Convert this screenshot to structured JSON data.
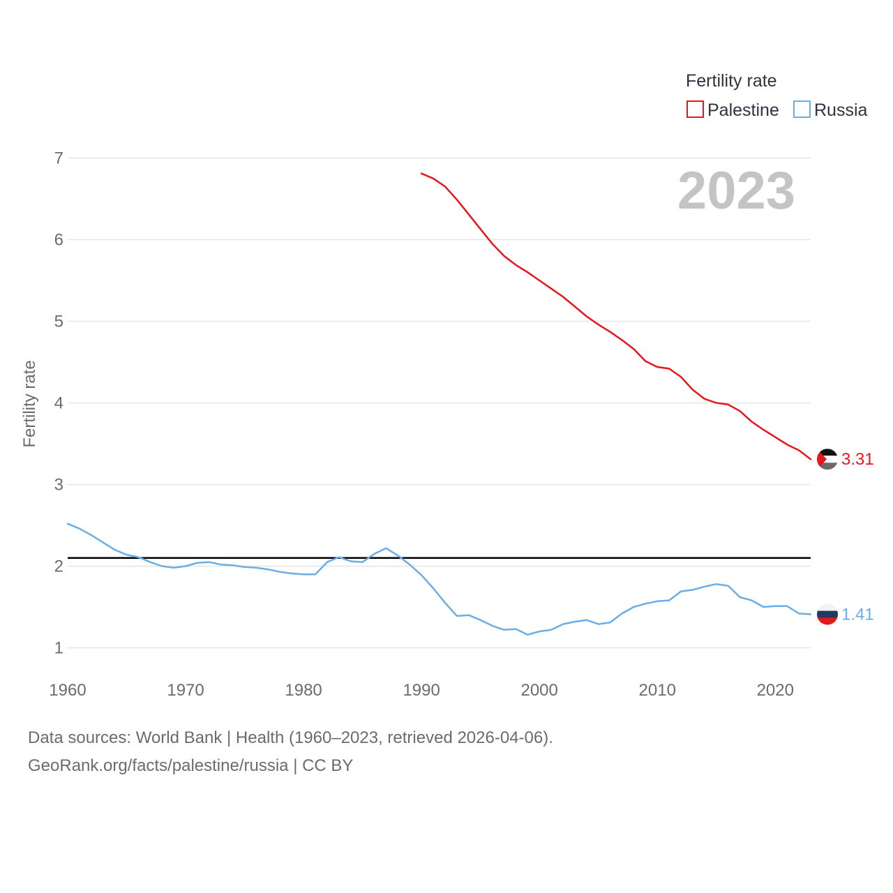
{
  "chart_data": {
    "type": "line",
    "ylabel": "Fertility rate",
    "xlim": [
      1960,
      2023
    ],
    "ylim": [
      0.85,
      7.05
    ],
    "x_ticks": [
      1960,
      1970,
      1980,
      1990,
      2000,
      2010,
      2020
    ],
    "x_tick_labels": [
      "1960",
      "1970",
      "1980",
      "1990",
      "2000",
      "2010",
      "2020"
    ],
    "y_ticks": [
      1,
      2,
      3,
      4,
      5,
      6,
      7
    ],
    "y_tick_labels": [
      "1",
      "2",
      "3",
      "4",
      "5",
      "6",
      "7"
    ],
    "grid": true,
    "legend": {
      "title": "Fertility rate",
      "position": "top-right",
      "entries": [
        {
          "name": "Palestine",
          "color": "#e8151b"
        },
        {
          "name": "Russia",
          "color": "#6aaee8"
        }
      ]
    },
    "year_label": "2023",
    "reference_line": {
      "y": 2.1,
      "color": "#000000"
    },
    "series": [
      {
        "name": "Palestine",
        "color": "#e8151b",
        "flag_icon": "palestine-flag-icon",
        "end_label": "3.31",
        "x": [
          1990,
          1991,
          1992,
          1993,
          1994,
          1995,
          1996,
          1997,
          1998,
          1999,
          2000,
          2001,
          2002,
          2003,
          2004,
          2005,
          2006,
          2007,
          2008,
          2009,
          2010,
          2011,
          2012,
          2013,
          2014,
          2015,
          2016,
          2017,
          2018,
          2019,
          2020,
          2021,
          2022,
          2023
        ],
        "values": [
          6.81,
          6.75,
          6.65,
          6.49,
          6.31,
          6.13,
          5.95,
          5.8,
          5.69,
          5.6,
          5.5,
          5.4,
          5.3,
          5.18,
          5.06,
          4.96,
          4.87,
          4.77,
          4.66,
          4.51,
          4.44,
          4.42,
          4.32,
          4.16,
          4.05,
          4.0,
          3.98,
          3.9,
          3.77,
          3.67,
          3.58,
          3.49,
          3.42,
          3.31
        ]
      },
      {
        "name": "Russia",
        "color": "#6aaee8",
        "flag_icon": "russia-flag-icon",
        "end_label": "1.41",
        "x": [
          1960,
          1961,
          1962,
          1963,
          1964,
          1965,
          1966,
          1967,
          1968,
          1969,
          1970,
          1971,
          1972,
          1973,
          1974,
          1975,
          1976,
          1977,
          1978,
          1979,
          1980,
          1981,
          1982,
          1983,
          1984,
          1985,
          1986,
          1987,
          1988,
          1989,
          1990,
          1991,
          1992,
          1993,
          1994,
          1995,
          1996,
          1997,
          1998,
          1999,
          2000,
          2001,
          2002,
          2003,
          2004,
          2005,
          2006,
          2007,
          2008,
          2009,
          2010,
          2011,
          2012,
          2013,
          2014,
          2015,
          2016,
          2017,
          2018,
          2019,
          2020,
          2021,
          2022,
          2023
        ],
        "values": [
          2.52,
          2.46,
          2.38,
          2.29,
          2.2,
          2.14,
          2.11,
          2.05,
          2.0,
          1.98,
          2.0,
          2.04,
          2.05,
          2.02,
          2.01,
          1.99,
          1.98,
          1.96,
          1.93,
          1.91,
          1.9,
          1.9,
          2.05,
          2.11,
          2.06,
          2.05,
          2.15,
          2.22,
          2.13,
          2.02,
          1.89,
          1.73,
          1.55,
          1.39,
          1.4,
          1.34,
          1.27,
          1.22,
          1.23,
          1.16,
          1.2,
          1.22,
          1.29,
          1.32,
          1.34,
          1.29,
          1.31,
          1.42,
          1.5,
          1.54,
          1.57,
          1.58,
          1.69,
          1.71,
          1.75,
          1.78,
          1.76,
          1.62,
          1.58,
          1.5,
          1.51,
          1.51,
          1.42,
          1.41
        ]
      }
    ]
  },
  "footer": {
    "line1": "Data sources: World Bank | Health (1960–2023, retrieved 2026-04-06).",
    "line2": "GeoRank.org/facts/palestine/russia | CC BY"
  }
}
